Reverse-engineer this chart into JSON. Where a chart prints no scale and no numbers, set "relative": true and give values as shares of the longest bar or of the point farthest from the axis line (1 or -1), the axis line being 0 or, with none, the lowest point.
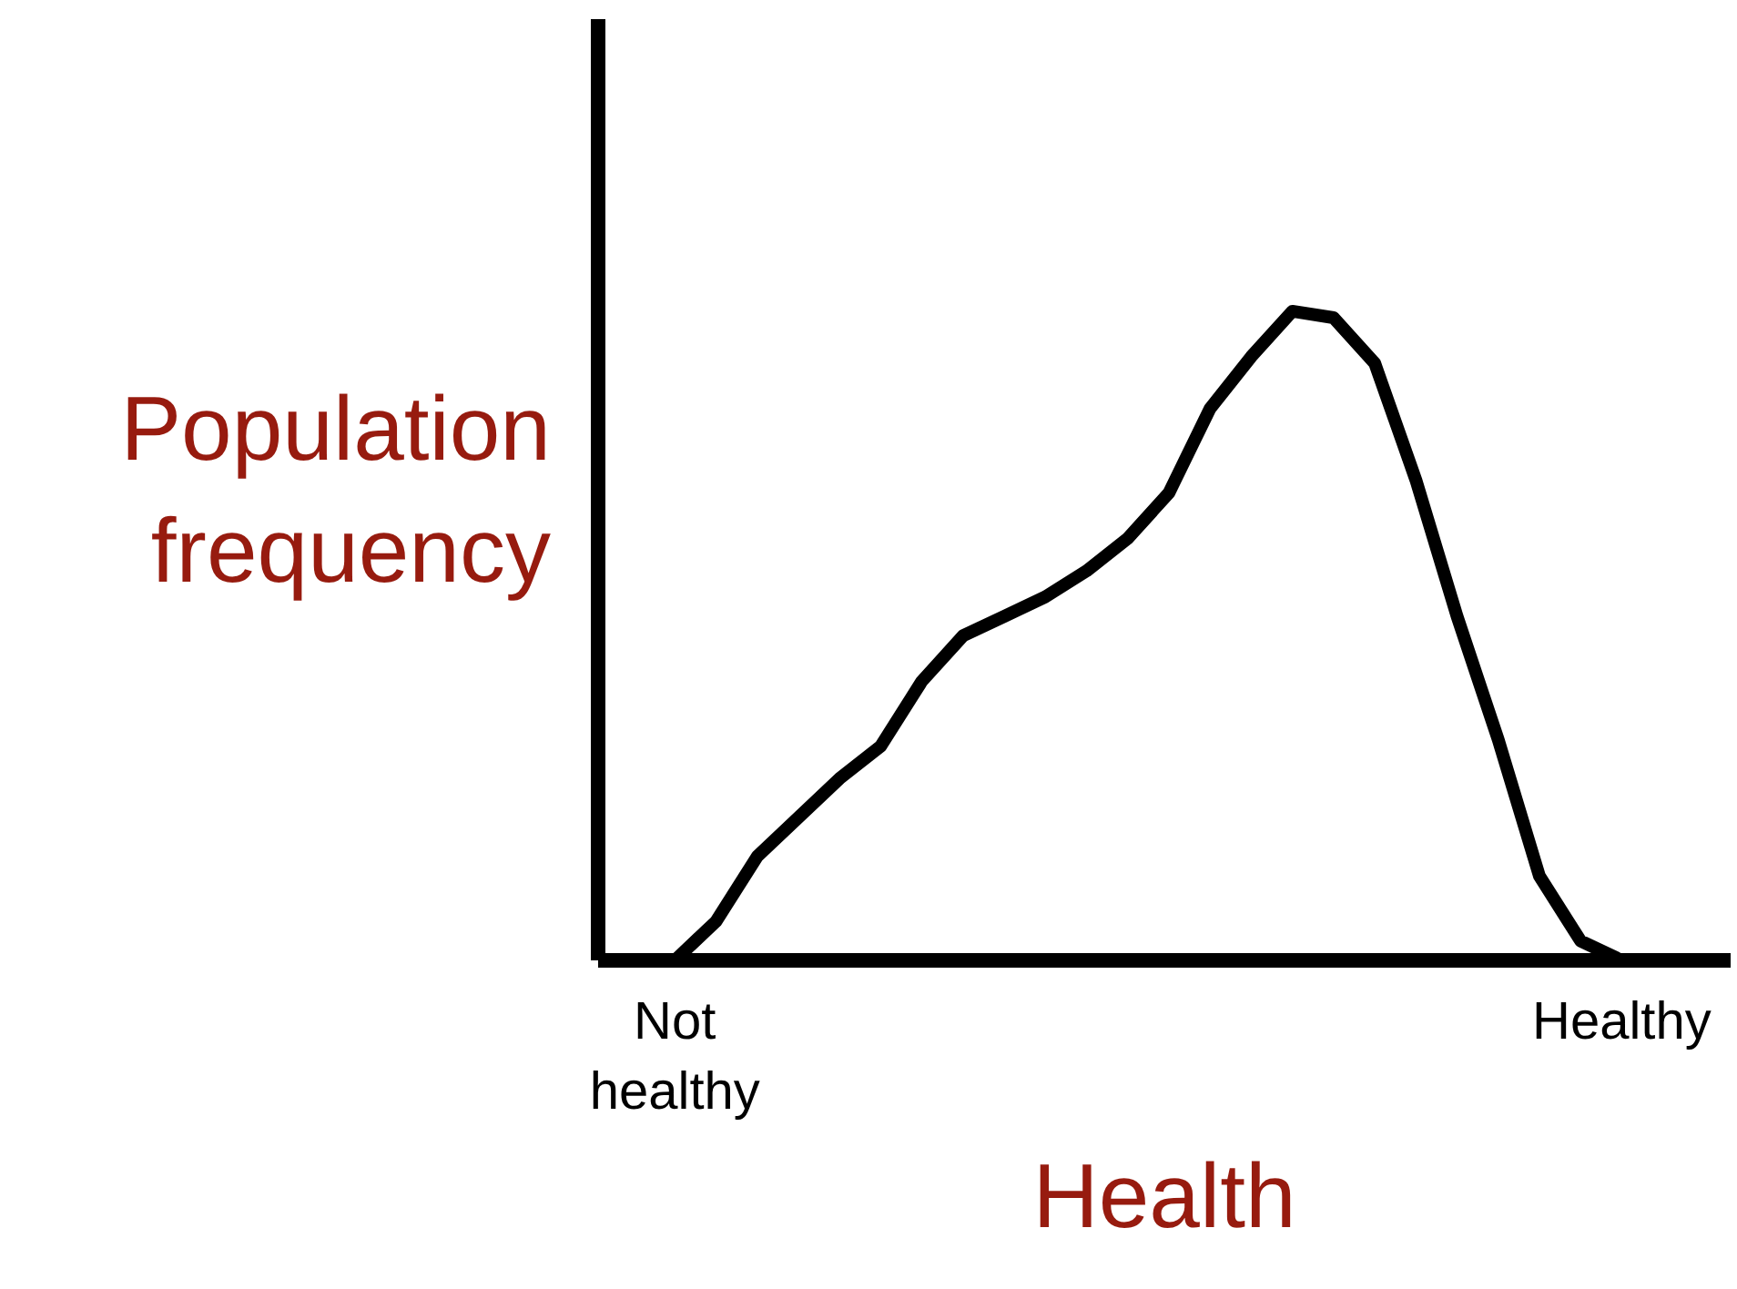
{
  "chart_data": {
    "type": "line",
    "relative": true,
    "xlabel": "Health",
    "ylabel": "Population frequency",
    "categories": [
      "Not healthy",
      null,
      null,
      null,
      null,
      null,
      null,
      null,
      null,
      null,
      null,
      null,
      null,
      null,
      null,
      null,
      null,
      null,
      null,
      null,
      null,
      null,
      null,
      "Healthy"
    ],
    "series": [
      {
        "color": "#000000",
        "values": [
          0,
          0.06,
          0.16,
          0.22,
          0.28,
          0.33,
          0.43,
          0.5,
          0.53,
          0.56,
          0.6,
          0.65,
          0.72,
          0.85,
          0.93,
          1.0,
          0.99,
          0.92,
          0.74,
          0.53,
          0.34,
          0.13,
          0.03,
          0
        ]
      }
    ],
    "grid": false
  }
}
